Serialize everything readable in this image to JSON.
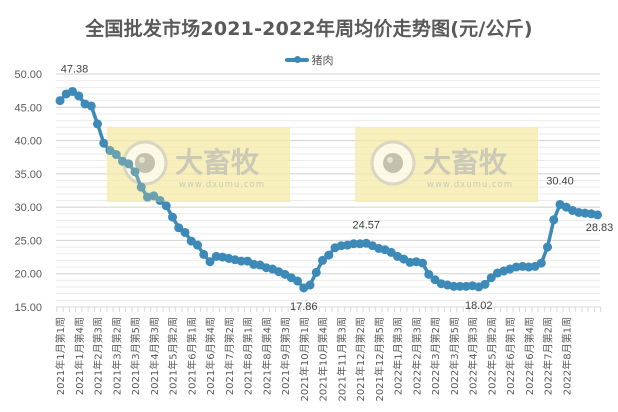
{
  "title": "全国批发市场2021-2022年周均价走势图(元/公斤)",
  "legend": {
    "label": "猪肉",
    "color": "#3d8ab8"
  },
  "watermark": {
    "brand": "大畜牧",
    "url": "www.dxumu.com"
  },
  "chart_data": {
    "type": "line",
    "title": "全国批发市场2021-2022年周均价走势图(元/公斤)",
    "xlabel": "",
    "ylabel": "",
    "ylim": [
      15,
      50
    ],
    "yticks": [
      "15.00",
      "20.00",
      "25.00",
      "30.00",
      "35.00",
      "40.00",
      "45.00",
      "50.00"
    ],
    "grid": true,
    "legend_position": "top",
    "x_tick_labels": [
      "2021年1月第1周",
      "2021年1月第4周",
      "2021年2月第3周",
      "2021年3月第2周",
      "2021年3月第5周",
      "2021年4月第3周",
      "2021年5月第2周",
      "2021年6月第1周",
      "2021年6月第4周",
      "2021年7月第2周",
      "2021年8月第1周",
      "2021年8月第4周",
      "2021年9月第3周",
      "2021年10月第1周",
      "2021年10月第4周",
      "2021年11月第3周",
      "2021年12月第2周",
      "2021年12月第5周",
      "2022年1月第3周",
      "2022年2月第3周",
      "2022年3月第2周",
      "2022年3月第5周",
      "2022年4月第3周",
      "2022年5月第2周",
      "2022年6月第1周",
      "2022年6月第4周",
      "2022年7月第2周",
      "2022年8月第1周"
    ],
    "series": [
      {
        "name": "猪肉",
        "color": "#3d8ab8",
        "values": [
          46.0,
          47.0,
          47.38,
          46.7,
          45.5,
          45.2,
          42.5,
          39.6,
          38.5,
          37.9,
          36.9,
          36.5,
          35.3,
          33.0,
          31.5,
          31.7,
          31.0,
          30.2,
          28.5,
          26.9,
          26.2,
          24.9,
          24.3,
          22.9,
          21.8,
          22.6,
          22.5,
          22.3,
          22.1,
          21.9,
          21.9,
          21.4,
          21.3,
          20.9,
          20.7,
          20.3,
          19.9,
          19.4,
          18.9,
          17.86,
          18.3,
          20.2,
          22.0,
          22.8,
          23.9,
          24.2,
          24.3,
          24.5,
          24.5,
          24.57,
          24.2,
          23.8,
          23.6,
          23.2,
          22.6,
          22.2,
          21.7,
          21.8,
          21.6,
          19.9,
          19.1,
          18.5,
          18.3,
          18.1,
          18.1,
          18.1,
          18.2,
          18.02,
          18.4,
          19.4,
          20.1,
          20.4,
          20.7,
          21.0,
          21.1,
          21.0,
          21.1,
          21.6,
          24.0,
          28.1,
          30.4,
          30.0,
          29.5,
          29.2,
          29.1,
          29.0,
          28.83
        ]
      }
    ],
    "annotations": [
      {
        "index": 2,
        "text": "47.38"
      },
      {
        "index": 39,
        "text": "17.86"
      },
      {
        "index": 49,
        "text": "24.57"
      },
      {
        "index": 67,
        "text": "18.02"
      },
      {
        "index": 80,
        "text": "30.40"
      },
      {
        "index": 86,
        "text": "28.83"
      }
    ]
  }
}
